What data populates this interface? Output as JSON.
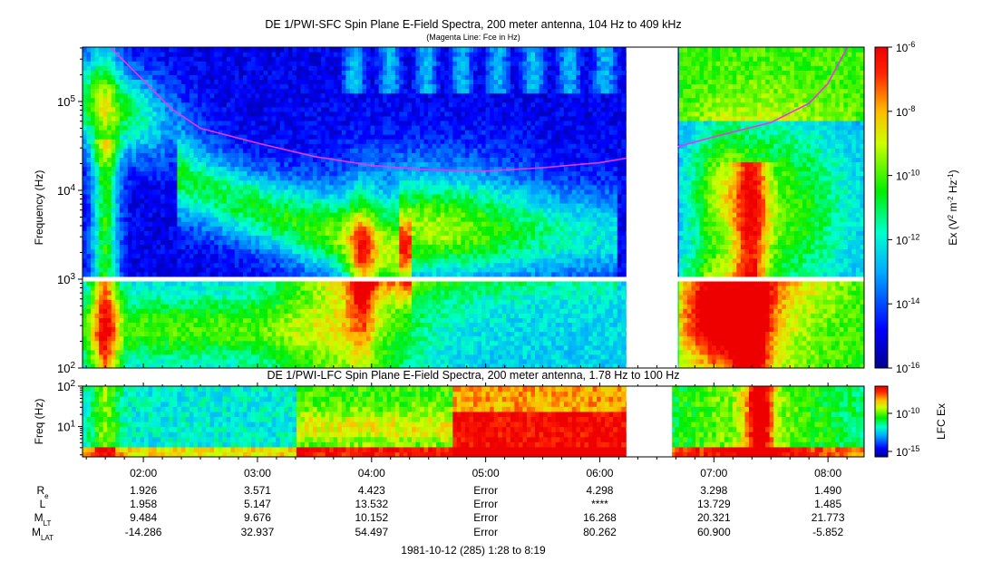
{
  "figure": {
    "title": "DE 1/PWI-SFC  Spin Plane E-Field Spectra, 200 meter antenna, 104 Hz to 409 kHz",
    "subtitle": "(Magenta Line: Fce in Hz)",
    "footer": "1981-10-12 (285) 1:28 to 8:19"
  },
  "chart_data": [
    {
      "type": "heatmap",
      "title": "DE 1/PWI-SFC  Spin Plane E-Field Spectra, 200 meter antenna, 104 Hz to 409 kHz",
      "subtitle": "(Magenta Line: Fce in Hz)",
      "ylabel": "Frequency (Hz)",
      "yscale": "log",
      "ylim": [
        100,
        409000
      ],
      "yticks": [
        {
          "v": 100,
          "t": "10^2"
        },
        {
          "v": 1000,
          "t": "10^3"
        },
        {
          "v": 10000,
          "t": "10^4"
        },
        {
          "v": 100000,
          "t": "10^5"
        }
      ],
      "xlim": [
        "01:28",
        "08:19"
      ],
      "colorbar": {
        "label": "Ex (V^2 m^-2 Hz^-1)",
        "scale": "log",
        "range": [
          1e-16,
          1e-06
        ],
        "ticks": [
          "10^-6",
          "10^-8",
          "10^-10",
          "10^-12",
          "10^-14",
          "10^-16"
        ]
      },
      "data_gaps": [
        [
          "06:14",
          "06:41"
        ]
      ],
      "fce_line": {
        "name": "Fce",
        "color": "#ee33ee",
        "x": [
          "01:43",
          "02:15",
          "02:30",
          "03:00",
          "03:30",
          "04:00",
          "04:30",
          "05:00",
          "05:30",
          "06:00",
          "06:14",
          "06:41",
          "07:00",
          "07:30",
          "07:50",
          "08:00",
          "08:10"
        ],
        "y": [
          400000,
          82000,
          50000,
          34000,
          24000,
          19000,
          17000,
          16500,
          18000,
          20500,
          23000,
          31000,
          40000,
          58000,
          95000,
          160000,
          400000
        ]
      }
    },
    {
      "type": "heatmap",
      "title": "DE 1/PWI-LFC  Spin Plane E-Field Spectra, 200 meter antenna, 1.78 Hz to 100 Hz",
      "ylabel": "Freq (Hz)",
      "yscale": "log",
      "ylim": [
        1.78,
        100
      ],
      "yticks": [
        {
          "v": 10,
          "t": "10^1"
        },
        {
          "v": 100,
          "t": "10^2"
        }
      ],
      "xlim": [
        "01:28",
        "08:19"
      ],
      "colorbar": {
        "label": "LFC Ex",
        "scale": "log",
        "ticks": [
          "10^-10",
          "10^-15"
        ]
      },
      "data_gaps": [
        [
          "06:14",
          "06:38"
        ]
      ]
    }
  ],
  "ephemeris": {
    "times": [
      "02:00",
      "03:00",
      "04:00",
      "05:00",
      "06:00",
      "07:00",
      "08:00"
    ],
    "rows": [
      {
        "label": "R",
        "sub": "e",
        "values": [
          "1.926",
          "3.571",
          "4.423",
          "Error",
          "4.298",
          "3.298",
          "1.490"
        ]
      },
      {
        "label": "L",
        "sub": "",
        "values": [
          "1.958",
          "5.147",
          "13.532",
          "Error",
          "****",
          "13.729",
          "1.485"
        ]
      },
      {
        "label": "M",
        "sub": "LT",
        "values": [
          "9.484",
          "9.676",
          "10.152",
          "Error",
          "16.268",
          "20.321",
          "21.773"
        ]
      },
      {
        "label": "M",
        "sub": "LAT",
        "values": [
          "-14.286",
          "32.937",
          "54.497",
          "Error",
          "80.262",
          "60.900",
          "-5.852"
        ]
      }
    ]
  }
}
